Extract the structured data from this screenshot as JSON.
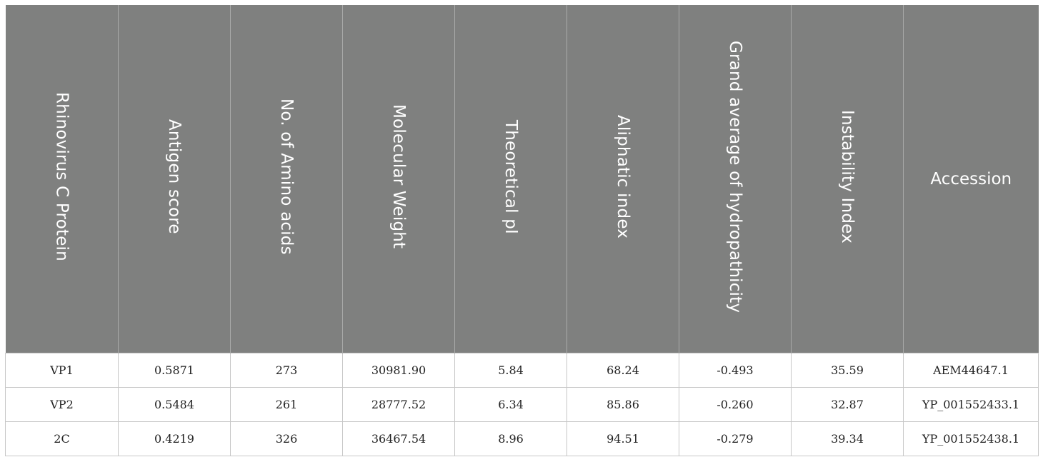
{
  "table": {
    "headers": [
      {
        "label": "Rhinovirus C Protein",
        "orientation": "vertical"
      },
      {
        "label": "Antigen score",
        "orientation": "vertical"
      },
      {
        "label": "No. of Amino acids",
        "orientation": "vertical"
      },
      {
        "label": "Molecular Weight",
        "orientation": "vertical"
      },
      {
        "label": "Theoretical pI",
        "orientation": "vertical"
      },
      {
        "label": "Aliphatic index",
        "orientation": "vertical"
      },
      {
        "label": "Grand average of hydropathicity",
        "orientation": "vertical"
      },
      {
        "label": "Instability Index",
        "orientation": "vertical"
      },
      {
        "label": "Accession",
        "orientation": "horizontal"
      }
    ],
    "rows": [
      [
        "VP1",
        "0.5871",
        "273",
        "30981.90",
        "5.84",
        "68.24",
        "-0.493",
        "35.59",
        "AEM44647.1"
      ],
      [
        "VP2",
        "0.5484",
        "261",
        "28777.52",
        "6.34",
        "85.86",
        "-0.260",
        "32.87",
        "YP_001552433.1"
      ],
      [
        "2C",
        "0.4219",
        "326",
        "36467.54",
        "8.96",
        "94.51",
        "-0.279",
        "39.34",
        "YP_001552438.1"
      ]
    ]
  },
  "colors": {
    "header_background": "#7f807f",
    "header_text": "#ffffff",
    "cell_border": "#c7c7c7"
  }
}
